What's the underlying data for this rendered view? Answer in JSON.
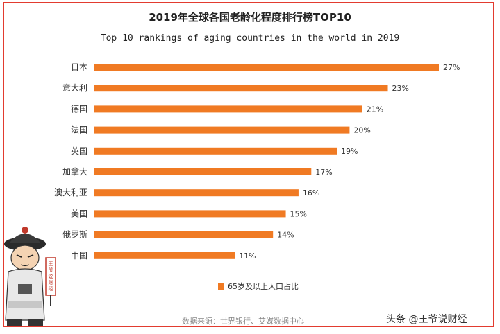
{
  "title": "2019年全球各国老龄化程度排行榜TOP10",
  "subtitle": "Top 10 rankings of aging countries in the world in 2019",
  "source": "数据来源：世界银行、艾媒数据中心",
  "watermark": "头条 @王爷说财经",
  "mascot_sign": "王爷说财经",
  "colors": {
    "bar": "#f07a23",
    "frame": "#e23b2f"
  },
  "chart_data": {
    "type": "bar",
    "orientation": "horizontal",
    "categories": [
      "日本",
      "意大利",
      "德国",
      "法国",
      "英国",
      "加拿大",
      "澳大利亚",
      "美国",
      "俄罗斯",
      "中国"
    ],
    "series": [
      {
        "name": "65岁及以上人口占比",
        "values": [
          27,
          23,
          21,
          20,
          19,
          17,
          16,
          15,
          14,
          11
        ]
      }
    ],
    "value_labels": [
      "27%",
      "23%",
      "21%",
      "20%",
      "19%",
      "17%",
      "16%",
      "15%",
      "14%",
      "11%"
    ],
    "xlim": [
      0,
      30
    ],
    "grid": false,
    "legend_position": "bottom"
  }
}
